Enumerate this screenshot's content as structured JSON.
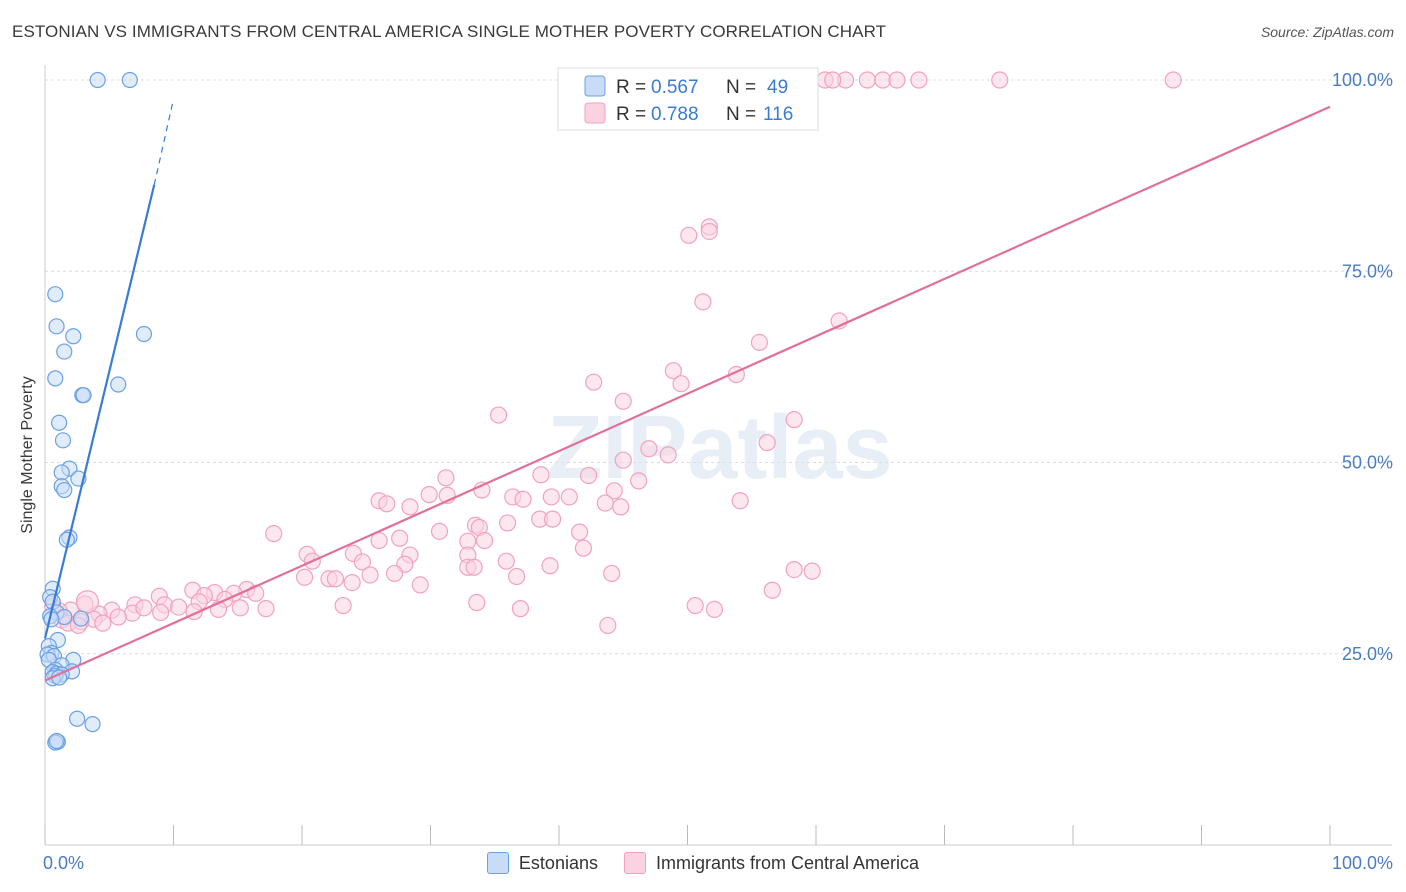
{
  "title": "ESTONIAN VS IMMIGRANTS FROM CENTRAL AMERICA SINGLE MOTHER POVERTY CORRELATION CHART",
  "source": "Source: ZipAtlas.com",
  "watermark": "ZIPatlas",
  "colors": {
    "blue": "#6aa0e6",
    "blue_line": "#3a7bd5",
    "pink": "#f2a2bd",
    "pink_line": "#e0709a",
    "axis_text": "#4a7cc4",
    "grid": "#dcdcdc"
  },
  "legend": {
    "rows": [
      {
        "r_label": "R =",
        "r_value": "0.567",
        "n_label": "N =",
        "n_value": "49"
      },
      {
        "r_label": "R =",
        "r_value": "0.788",
        "n_label": "N =",
        "n_value": "116"
      }
    ]
  },
  "bottom_legend": [
    {
      "label": "Estonians"
    },
    {
      "label": "Immigrants from Central America"
    }
  ],
  "chart_data": {
    "type": "scatter",
    "title": "ESTONIAN VS IMMIGRANTS FROM CENTRAL AMERICA SINGLE MOTHER POVERTY CORRELATION CHART",
    "xlabel": "",
    "ylabel": "Single Mother Poverty",
    "xlim": [
      0,
      100
    ],
    "ylim": [
      0,
      104
    ],
    "x_tick_labels": [
      "0.0%",
      "100.0%"
    ],
    "y_tick_labels": [
      "25.0%",
      "50.0%",
      "75.0%",
      "100.0%"
    ],
    "y_ticks": [
      25,
      50,
      75,
      100
    ],
    "grid": true,
    "series": [
      {
        "name": "Estonians",
        "color": "#6aa0e6",
        "R": 0.567,
        "N": 49,
        "trend": {
          "x0": 0,
          "y0": 27.0,
          "x1": 8.5,
          "y1": 86.3,
          "dash_to_x": 10,
          "dash_to_y": 97.5
        },
        "points": [
          [
            4.1,
            100
          ],
          [
            6.6,
            100
          ],
          [
            0.8,
            72
          ],
          [
            0.9,
            67.8
          ],
          [
            2.2,
            66.5
          ],
          [
            7.7,
            66.8
          ],
          [
            1.5,
            64.5
          ],
          [
            0.8,
            61
          ],
          [
            5.7,
            60.2
          ],
          [
            2.9,
            58.8
          ],
          [
            3.0,
            58.8
          ],
          [
            1.1,
            55.2
          ],
          [
            1.4,
            52.9
          ],
          [
            1.9,
            49.2
          ],
          [
            1.3,
            48.7
          ],
          [
            2.6,
            47.9
          ],
          [
            1.3,
            46.9
          ],
          [
            1.5,
            46.4
          ],
          [
            1.9,
            40.2
          ],
          [
            1.7,
            39.9
          ],
          [
            0.6,
            33.5
          ],
          [
            0.4,
            32.4
          ],
          [
            0.6,
            31.8
          ],
          [
            0.9,
            30.4
          ],
          [
            1.5,
            29.8
          ],
          [
            2.8,
            29.6
          ],
          [
            0.4,
            29.9
          ],
          [
            0.5,
            29.5
          ],
          [
            1.0,
            26.8
          ],
          [
            0.3,
            26.0
          ],
          [
            0.5,
            25.1
          ],
          [
            0.2,
            24.9
          ],
          [
            0.7,
            24.7
          ],
          [
            0.3,
            24.2
          ],
          [
            2.2,
            24.2
          ],
          [
            1.3,
            23.5
          ],
          [
            0.8,
            22.9
          ],
          [
            0.6,
            22.6
          ],
          [
            2.1,
            22.7
          ],
          [
            0.9,
            22.4
          ],
          [
            1.3,
            22.3
          ],
          [
            0.8,
            22.1
          ],
          [
            0.6,
            21.8
          ],
          [
            1.1,
            21.9
          ],
          [
            2.5,
            16.5
          ],
          [
            3.7,
            15.8
          ],
          [
            1.0,
            13.5
          ],
          [
            0.8,
            13.4
          ],
          [
            0.9,
            13.6
          ]
        ]
      },
      {
        "name": "Immigrants from Central America",
        "color": "#f2a2bd",
        "R": 0.788,
        "N": 116,
        "trend": {
          "x0": 0,
          "y0": 21.5,
          "x1": 100,
          "y1": 96.5
        },
        "points": [
          [
            60.7,
            100
          ],
          [
            62.3,
            100
          ],
          [
            64.0,
            100
          ],
          [
            61.3,
            100
          ],
          [
            65.2,
            100
          ],
          [
            66.3,
            100
          ],
          [
            68.0,
            100
          ],
          [
            74.3,
            100
          ],
          [
            87.8,
            100
          ],
          [
            51.7,
            80.8
          ],
          [
            51.7,
            80.2
          ],
          [
            50.1,
            79.7
          ],
          [
            51.2,
            71
          ],
          [
            61.8,
            68.5
          ],
          [
            55.6,
            65.7
          ],
          [
            48.9,
            62
          ],
          [
            42.7,
            60.5
          ],
          [
            49.5,
            60.3
          ],
          [
            53.8,
            61.5
          ],
          [
            45.0,
            58.0
          ],
          [
            35.3,
            56.2
          ],
          [
            58.3,
            55.6
          ],
          [
            56.2,
            52.6
          ],
          [
            47.0,
            51.8
          ],
          [
            48.5,
            51.0
          ],
          [
            45.0,
            50.3
          ],
          [
            38.6,
            48.4
          ],
          [
            42.3,
            48.3
          ],
          [
            31.2,
            48.0
          ],
          [
            46.2,
            47.6
          ],
          [
            34.0,
            46.4
          ],
          [
            44.3,
            46.3
          ],
          [
            29.9,
            45.8
          ],
          [
            31.3,
            45.7
          ],
          [
            36.4,
            45.5
          ],
          [
            39.4,
            45.5
          ],
          [
            40.8,
            45.5
          ],
          [
            37.2,
            45.2
          ],
          [
            43.6,
            44.7
          ],
          [
            44.8,
            44.2
          ],
          [
            54.1,
            45.0
          ],
          [
            26.0,
            45.0
          ],
          [
            26.6,
            44.6
          ],
          [
            28.4,
            44.2
          ],
          [
            36.0,
            42.1
          ],
          [
            33.5,
            41.8
          ],
          [
            38.5,
            42.6
          ],
          [
            39.5,
            42.6
          ],
          [
            33.8,
            41.5
          ],
          [
            41.6,
            40.9
          ],
          [
            17.8,
            40.7
          ],
          [
            30.7,
            41.0
          ],
          [
            27.6,
            40.1
          ],
          [
            26.0,
            39.8
          ],
          [
            32.9,
            39.7
          ],
          [
            34.2,
            39.8
          ],
          [
            41.9,
            38.8
          ],
          [
            20.4,
            38.0
          ],
          [
            24.0,
            38.1
          ],
          [
            28.4,
            37.9
          ],
          [
            32.9,
            37.9
          ],
          [
            20.8,
            37.1
          ],
          [
            24.7,
            37.0
          ],
          [
            28.0,
            36.7
          ],
          [
            32.9,
            36.3
          ],
          [
            33.4,
            36.3
          ],
          [
            35.9,
            37.1
          ],
          [
            39.3,
            36.5
          ],
          [
            44.1,
            35.5
          ],
          [
            25.3,
            35.3
          ],
          [
            20.2,
            35.0
          ],
          [
            22.1,
            34.8
          ],
          [
            27.2,
            35.5
          ],
          [
            22.6,
            34.8
          ],
          [
            23.9,
            34.3
          ],
          [
            29.2,
            34.0
          ],
          [
            36.7,
            35.1
          ],
          [
            58.3,
            36.0
          ],
          [
            59.7,
            35.8
          ],
          [
            15.7,
            33.4
          ],
          [
            11.5,
            33.3
          ],
          [
            13.2,
            33.0
          ],
          [
            14.7,
            32.9
          ],
          [
            16.4,
            32.9
          ],
          [
            8.9,
            32.5
          ],
          [
            12.4,
            32.6
          ],
          [
            14.0,
            32.1
          ],
          [
            12.0,
            31.8
          ],
          [
            9.3,
            31.4
          ],
          [
            7.0,
            31.4
          ],
          [
            10.4,
            31.1
          ],
          [
            15.2,
            31.0
          ],
          [
            17.2,
            30.9
          ],
          [
            11.6,
            30.5
          ],
          [
            13.5,
            30.8
          ],
          [
            5.2,
            30.7
          ],
          [
            3.1,
            31.5
          ],
          [
            2.0,
            30.7
          ],
          [
            4.2,
            30.2
          ],
          [
            6.8,
            30.3
          ],
          [
            7.7,
            31.0
          ],
          [
            9.0,
            30.4
          ],
          [
            5.7,
            29.8
          ],
          [
            3.8,
            29.5
          ],
          [
            2.8,
            29.2
          ],
          [
            4.5,
            29.0
          ],
          [
            1.1,
            30.6
          ],
          [
            0.6,
            31.2
          ],
          [
            1.3,
            29.4
          ],
          [
            1.8,
            29.0
          ],
          [
            2.6,
            28.7
          ],
          [
            23.2,
            31.3
          ],
          [
            33.6,
            31.7
          ],
          [
            37.0,
            30.9
          ],
          [
            52.1,
            30.8
          ],
          [
            56.6,
            33.3
          ],
          [
            43.8,
            28.7
          ],
          [
            50.6,
            31.3
          ]
        ]
      }
    ]
  }
}
